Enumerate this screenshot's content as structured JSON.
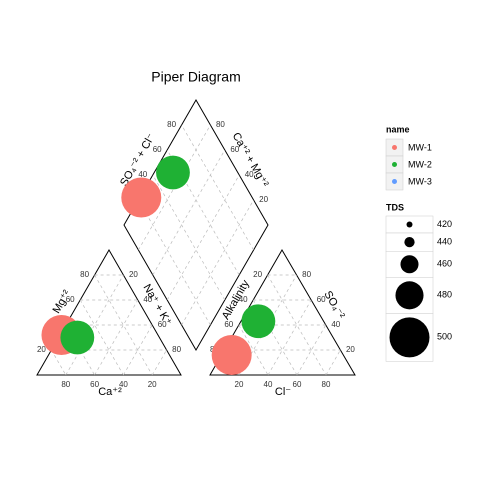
{
  "chart_data": {
    "type": "piper",
    "title": "Piper Diagram",
    "axes": {
      "ca": "Ca⁺²",
      "mg": "Mg⁺²",
      "na_k": "Na⁺ + K⁺",
      "cl": "Cl⁻",
      "so4": "SO₄⁻²",
      "alkalinity": "Alkalinity",
      "so4_cl": "SO₄⁻² + Cl⁻",
      "ca_mg": "Ca⁺² + Mg⁺²"
    },
    "ticks": [
      20,
      40,
      60,
      80
    ],
    "grid": true,
    "legend_title": "name",
    "series": [
      {
        "name": "MW-1",
        "color": "#F8766D",
        "ca": 67,
        "mg": 32,
        "na_k": 1,
        "cl": 7,
        "so4": 16,
        "alkalinity": 77,
        "tds": 500
      },
      {
        "name": "MW-2",
        "color": "#1fb134",
        "ca": 57,
        "mg": 30,
        "na_k": 13,
        "cl": 12,
        "so4": 43,
        "alkalinity": 45,
        "tds": 490
      },
      {
        "name": "MW-3",
        "color": "#619CFF",
        "ca": null,
        "mg": null,
        "na_k": null,
        "cl": null,
        "so4": null,
        "alkalinity": null,
        "tds": null
      }
    ],
    "size_legend": {
      "title": "TDS",
      "values": [
        420,
        440,
        460,
        480,
        500
      ]
    }
  }
}
